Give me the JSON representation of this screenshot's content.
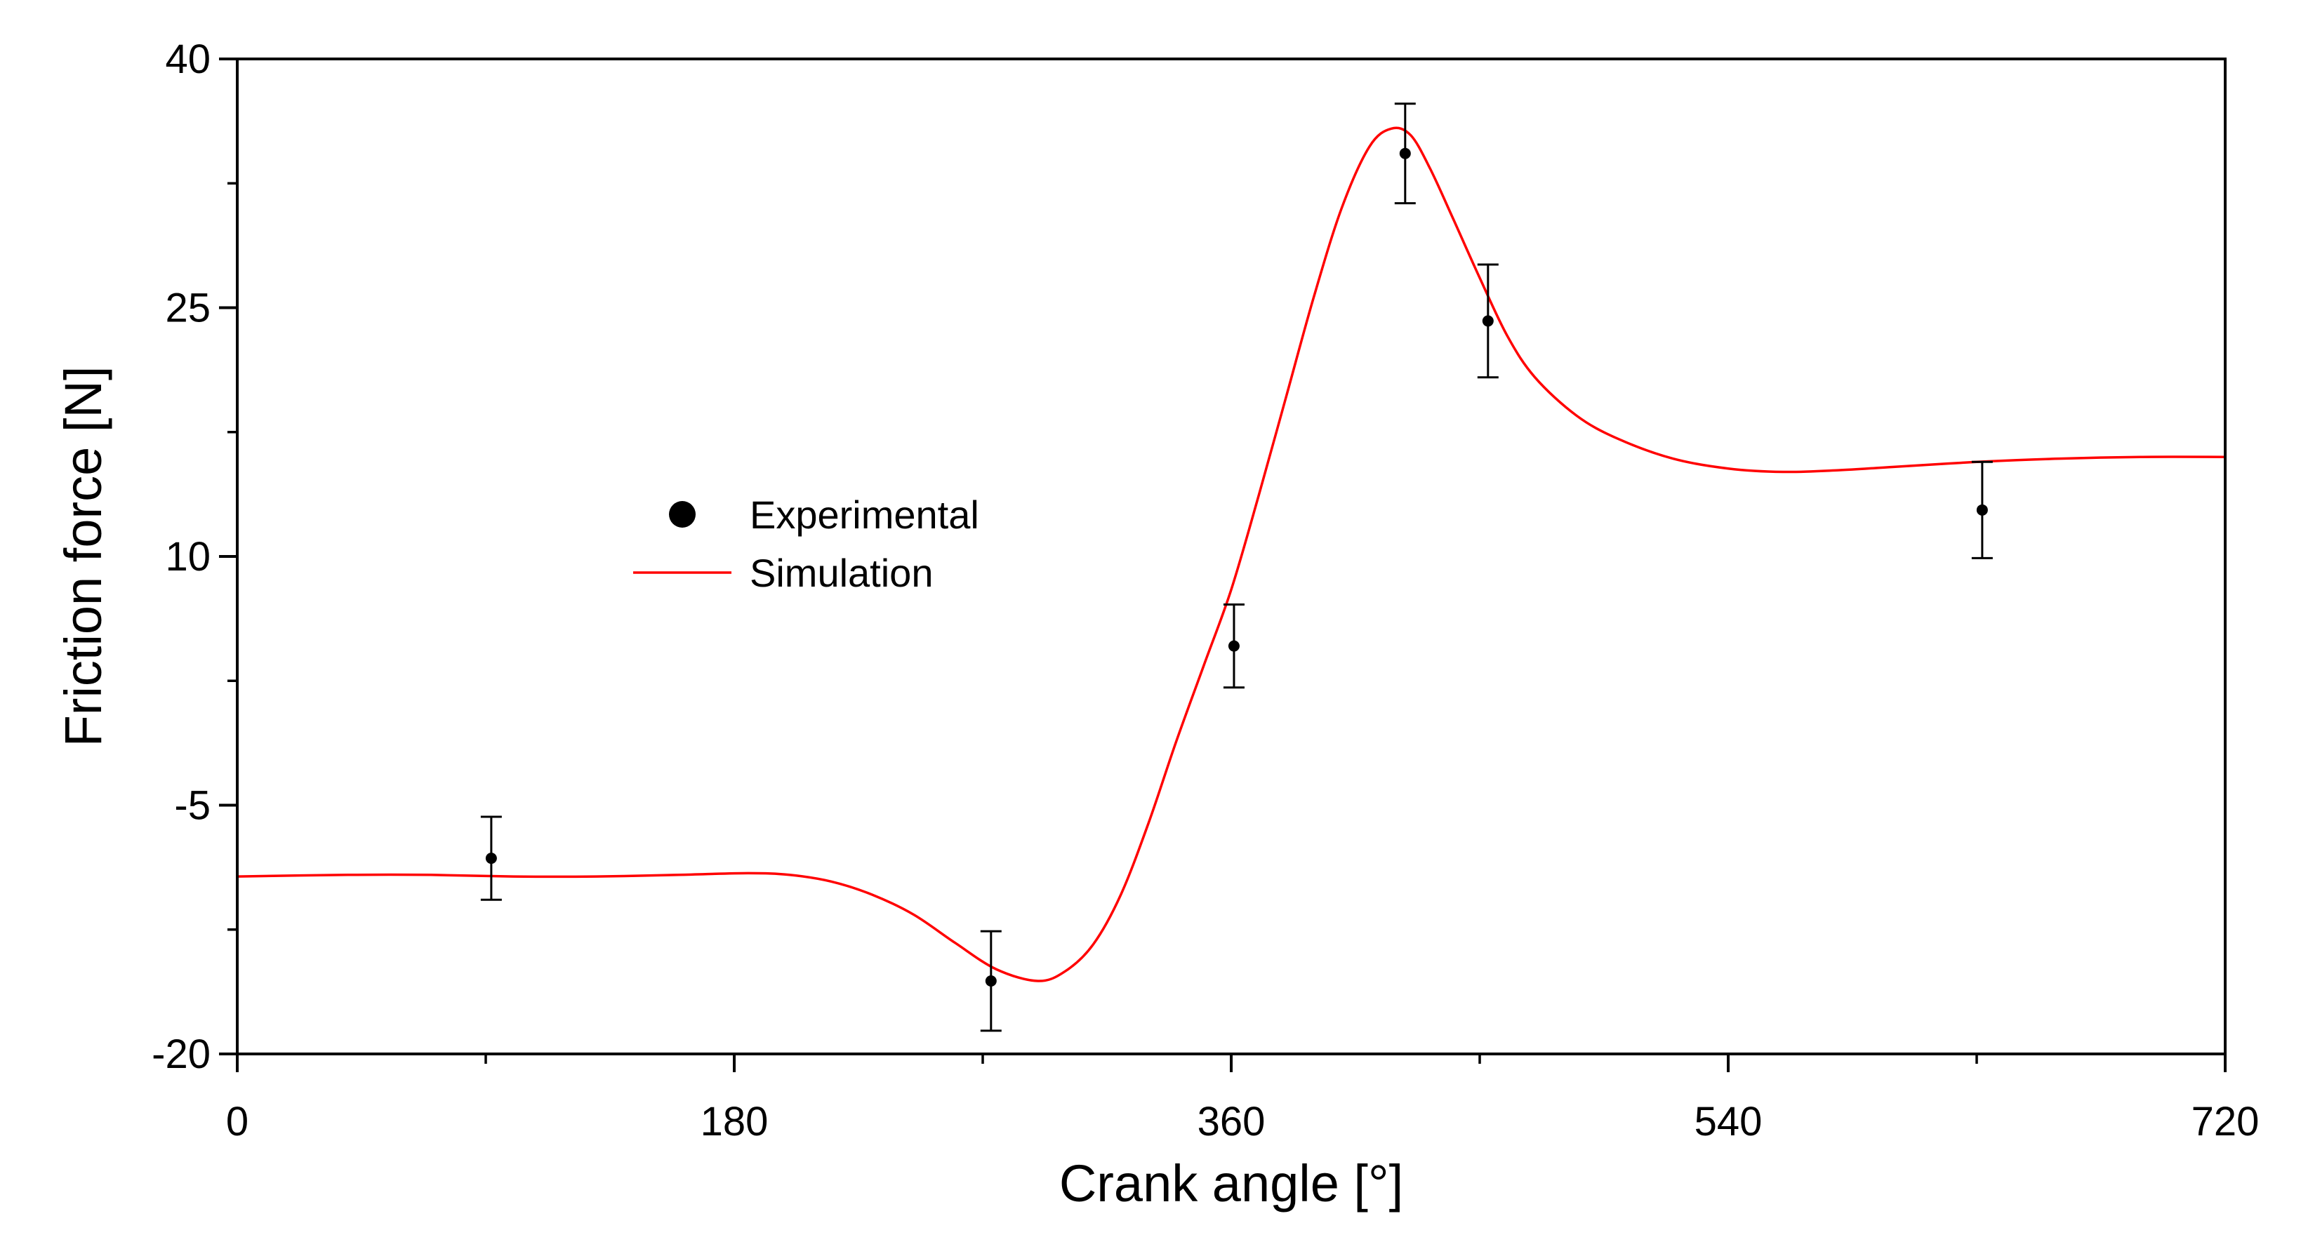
{
  "chart_data": {
    "type": "line",
    "title": "",
    "xlabel": "Crank angle [°]",
    "ylabel": "Friction force [N]",
    "xlim": [
      0,
      720
    ],
    "ylim": [
      -20,
      40
    ],
    "xticks": [
      0,
      180,
      360,
      540,
      720
    ],
    "xtick_labels": [
      "0",
      "180",
      "360",
      "540",
      "720"
    ],
    "yticks": [
      -20,
      -5,
      10,
      25,
      40
    ],
    "ytick_labels": [
      "-20",
      "-5",
      "10",
      "25",
      "40"
    ],
    "grid": false,
    "legend_position": "center-left",
    "series": [
      {
        "name": "Experimental",
        "kind": "scatter-errorbar",
        "color": "#000000",
        "x": [
          92,
          273,
          361,
          423,
          453,
          632
        ],
        "y": [
          -8.2,
          -15.6,
          4.6,
          34.3,
          24.2,
          12.8
        ],
        "err": [
          2.5,
          3.0,
          2.5,
          3.0,
          3.4,
          2.9
        ]
      },
      {
        "name": "Simulation",
        "kind": "line",
        "color": "#ff0000",
        "x": [
          0,
          40,
          70,
          100,
          130,
          160,
          185,
          200,
          215,
          230,
          245,
          260,
          275,
          290,
          300,
          310,
          320,
          330,
          340,
          350,
          360,
          370,
          380,
          390,
          400,
          410,
          418,
          425,
          432,
          440,
          450,
          460,
          470,
          485,
          500,
          520,
          540,
          560,
          580,
          600,
          630,
          660,
          690,
          720
        ],
        "y": [
          -9.3,
          -9.2,
          -9.2,
          -9.3,
          -9.3,
          -9.2,
          -9.1,
          -9.2,
          -9.6,
          -10.4,
          -11.6,
          -13.3,
          -14.9,
          -15.6,
          -15.0,
          -13.4,
          -10.4,
          -6.1,
          -1.2,
          3.4,
          8.0,
          13.7,
          19.7,
          25.7,
          31.0,
          34.7,
          35.8,
          35.4,
          33.4,
          30.5,
          26.8,
          23.3,
          20.8,
          18.5,
          17.1,
          15.9,
          15.3,
          15.1,
          15.2,
          15.4,
          15.7,
          15.9,
          16.0,
          16.0
        ]
      }
    ]
  }
}
